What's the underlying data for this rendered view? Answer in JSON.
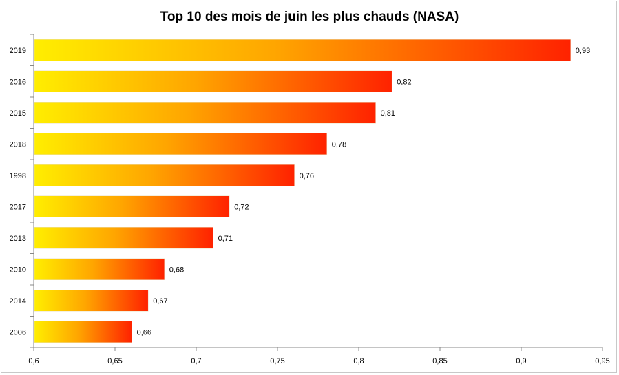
{
  "chart_data": {
    "type": "bar",
    "orientation": "horizontal",
    "title": "Top 10 des mois de juin les plus chauds (NASA)",
    "categories": [
      "2019",
      "2016",
      "2015",
      "2018",
      "1998",
      "2017",
      "2013",
      "2010",
      "2014",
      "2006"
    ],
    "values": [
      0.93,
      0.82,
      0.81,
      0.78,
      0.76,
      0.72,
      0.71,
      0.68,
      0.67,
      0.66
    ],
    "value_labels": [
      "0,93",
      "0,82",
      "0,81",
      "0,78",
      "0,76",
      "0,72",
      "0,71",
      "0,68",
      "0,67",
      "0,66"
    ],
    "xlim": [
      0.6,
      0.95
    ],
    "xticks": [
      0.6,
      0.65,
      0.7,
      0.75,
      0.8,
      0.85,
      0.9,
      0.95
    ],
    "xtick_labels": [
      "0,6",
      "0,65",
      "0,7",
      "0,75",
      "0,8",
      "0,85",
      "0,9",
      "0,95"
    ],
    "xlabel": "",
    "ylabel": "",
    "grid": false,
    "colors": {
      "gradient_start": "#ffee00",
      "gradient_end": "#ff2200",
      "axis": "#888888"
    }
  }
}
